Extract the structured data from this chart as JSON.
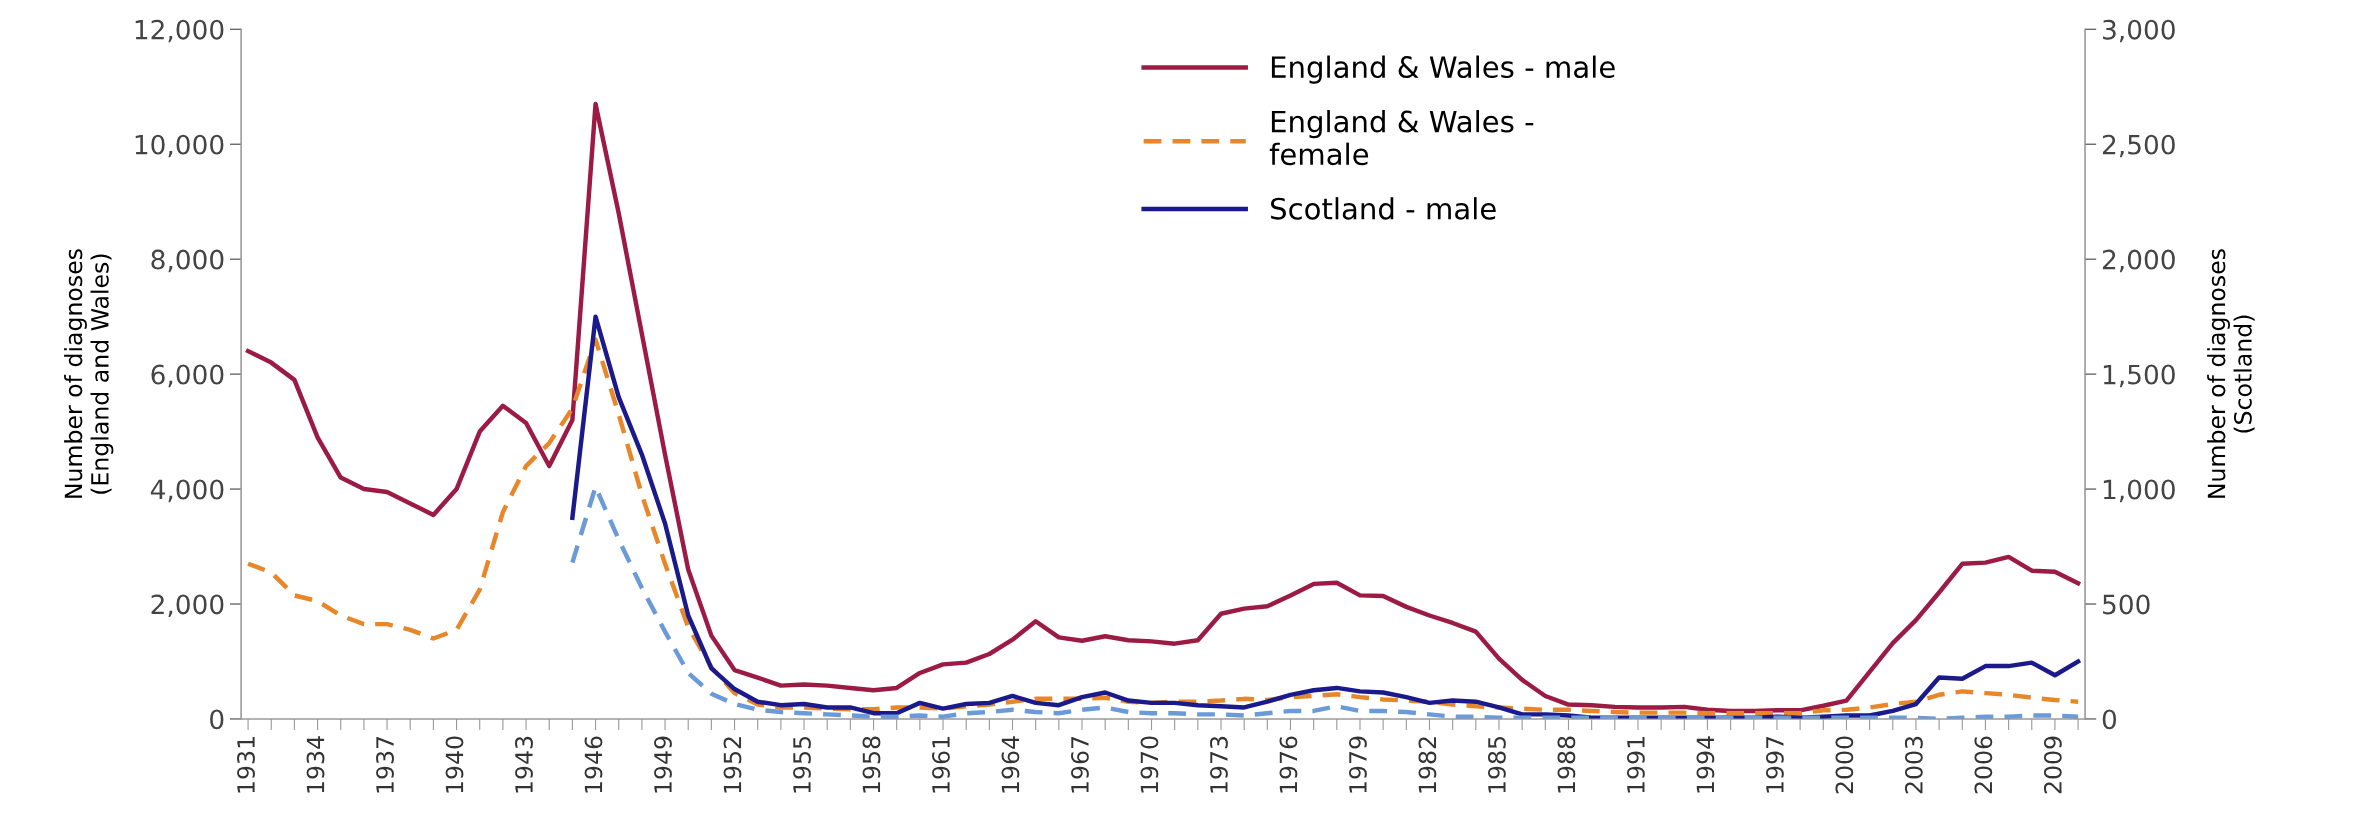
{
  "chart_data": {
    "type": "line",
    "categories": [
      "1931",
      null,
      null,
      "1934",
      null,
      null,
      "1937",
      null,
      null,
      "1940",
      null,
      null,
      "1943",
      null,
      null,
      "1946",
      null,
      null,
      "1949",
      null,
      null,
      "1952",
      null,
      null,
      "1955",
      null,
      null,
      "1958",
      null,
      null,
      "1961",
      null,
      null,
      "1964",
      null,
      null,
      "1967",
      null,
      null,
      "1970",
      null,
      null,
      "1973",
      null,
      null,
      "1976",
      null,
      null,
      "1979",
      null,
      null,
      "1982",
      null,
      null,
      "1985",
      null,
      null,
      "1988",
      null,
      null,
      "1991",
      null,
      null,
      "1994",
      null,
      null,
      "1997",
      null,
      null,
      "2000",
      null,
      null,
      "2003",
      null,
      null,
      "2006",
      null,
      null,
      "2009",
      null
    ],
    "ylabel": "Number of diagnoses\n(England and Wales)",
    "y2label": "Number of diagnoses\n(Scotland)",
    "ylim": [
      0,
      12000
    ],
    "yticks": [
      {
        "value": 0,
        "label": "0"
      },
      {
        "value": 2000,
        "label": "2,000"
      },
      {
        "value": 4000,
        "label": "4,000"
      },
      {
        "value": 6000,
        "label": "6,000"
      },
      {
        "value": 8000,
        "label": "8,000"
      },
      {
        "value": 10000,
        "label": "10,000"
      },
      {
        "value": 12000,
        "label": "12,000"
      }
    ],
    "y2lim": [
      0,
      3000
    ],
    "y2ticks": [
      {
        "value": 0,
        "label": "0"
      },
      {
        "value": 500,
        "label": "500"
      },
      {
        "value": 1000,
        "label": "1,000"
      },
      {
        "value": 1500,
        "label": "1,500"
      },
      {
        "value": 2000,
        "label": "2,000"
      },
      {
        "value": 2500,
        "label": "2,500"
      },
      {
        "value": 3000,
        "label": "3,000"
      }
    ],
    "legend": "top right",
    "grid": false,
    "series": [
      {
        "name": "England & Wales - male",
        "color": "#9b1b45",
        "line_style": "solid",
        "values": [
          6400,
          6200,
          5900,
          4900,
          4200,
          4000,
          3950,
          3750,
          3550,
          4000,
          5000,
          5450,
          5150,
          4400,
          5200,
          10700,
          8800,
          6700,
          4600,
          2600,
          1450,
          850,
          720,
          580,
          600,
          580,
          540,
          500,
          540,
          800,
          950,
          980,
          1130,
          1380,
          1700,
          1420,
          1360,
          1440,
          1370,
          1350,
          1310,
          1370,
          1830,
          1920,
          1960,
          2150,
          2350,
          2370,
          2150,
          2140,
          1950,
          1800,
          1670,
          1520,
          1050,
          680,
          400,
          250,
          240,
          210,
          200,
          200,
          210,
          160,
          140,
          140,
          150,
          150,
          230,
          320,
          820,
          1320,
          1720,
          2200,
          2700,
          2720,
          2820,
          2580,
          2560,
          2360
        ]
      },
      {
        "name": "England & Wales -\nfemale",
        "color": "#e8862a",
        "line_style": "dashed",
        "values": [
          2700,
          2550,
          2150,
          2050,
          1800,
          1650,
          1650,
          1550,
          1400,
          1550,
          2250,
          3600,
          4400,
          4800,
          5400,
          6600,
          5300,
          3900,
          2700,
          1600,
          900,
          450,
          250,
          200,
          200,
          180,
          170,
          170,
          200,
          200,
          180,
          220,
          250,
          300,
          350,
          350,
          350,
          370,
          300,
          280,
          300,
          300,
          320,
          350,
          330,
          380,
          400,
          430,
          380,
          340,
          320,
          300,
          250,
          220,
          200,
          180,
          160,
          160,
          140,
          120,
          110,
          110,
          110,
          100,
          100,
          100,
          100,
          100,
          150,
          160,
          200,
          260,
          300,
          420,
          480,
          450,
          420,
          370,
          330,
          300
        ]
      },
      {
        "name": "Scotland - male",
        "color": "#1a1a8c",
        "line_style": "solid",
        "axis": "y2",
        "values": [
          null,
          null,
          null,
          null,
          null,
          null,
          null,
          null,
          null,
          null,
          null,
          null,
          null,
          null,
          875,
          1750,
          1400,
          1150,
          850,
          450,
          220,
          130,
          75,
          60,
          65,
          50,
          50,
          25,
          25,
          70,
          45,
          65,
          70,
          100,
          70,
          60,
          95,
          115,
          80,
          70,
          70,
          60,
          55,
          50,
          75,
          105,
          125,
          135,
          120,
          115,
          95,
          70,
          80,
          75,
          50,
          20,
          20,
          15,
          5,
          5,
          5,
          5,
          5,
          5,
          5,
          5,
          10,
          5,
          10,
          15,
          15,
          35,
          65,
          180,
          175,
          230,
          230,
          245,
          190,
          250
        ]
      },
      {
        "color": "#6a9ad8",
        "line_style": "dashed",
        "axis": "y2",
        "values": [
          null,
          null,
          null,
          null,
          null,
          null,
          null,
          null,
          null,
          null,
          null,
          null,
          null,
          null,
          680,
          1010,
          780,
          570,
          380,
          200,
          110,
          65,
          40,
          30,
          25,
          20,
          15,
          10,
          10,
          15,
          10,
          25,
          30,
          40,
          30,
          25,
          40,
          50,
          30,
          25,
          25,
          20,
          20,
          15,
          25,
          35,
          35,
          55,
          35,
          35,
          30,
          20,
          10,
          10,
          5,
          5,
          5,
          5,
          5,
          5,
          5,
          5,
          5,
          5,
          5,
          5,
          5,
          5,
          5,
          5,
          5,
          5,
          5,
          0,
          5,
          10,
          10,
          15,
          15,
          10
        ]
      }
    ]
  }
}
